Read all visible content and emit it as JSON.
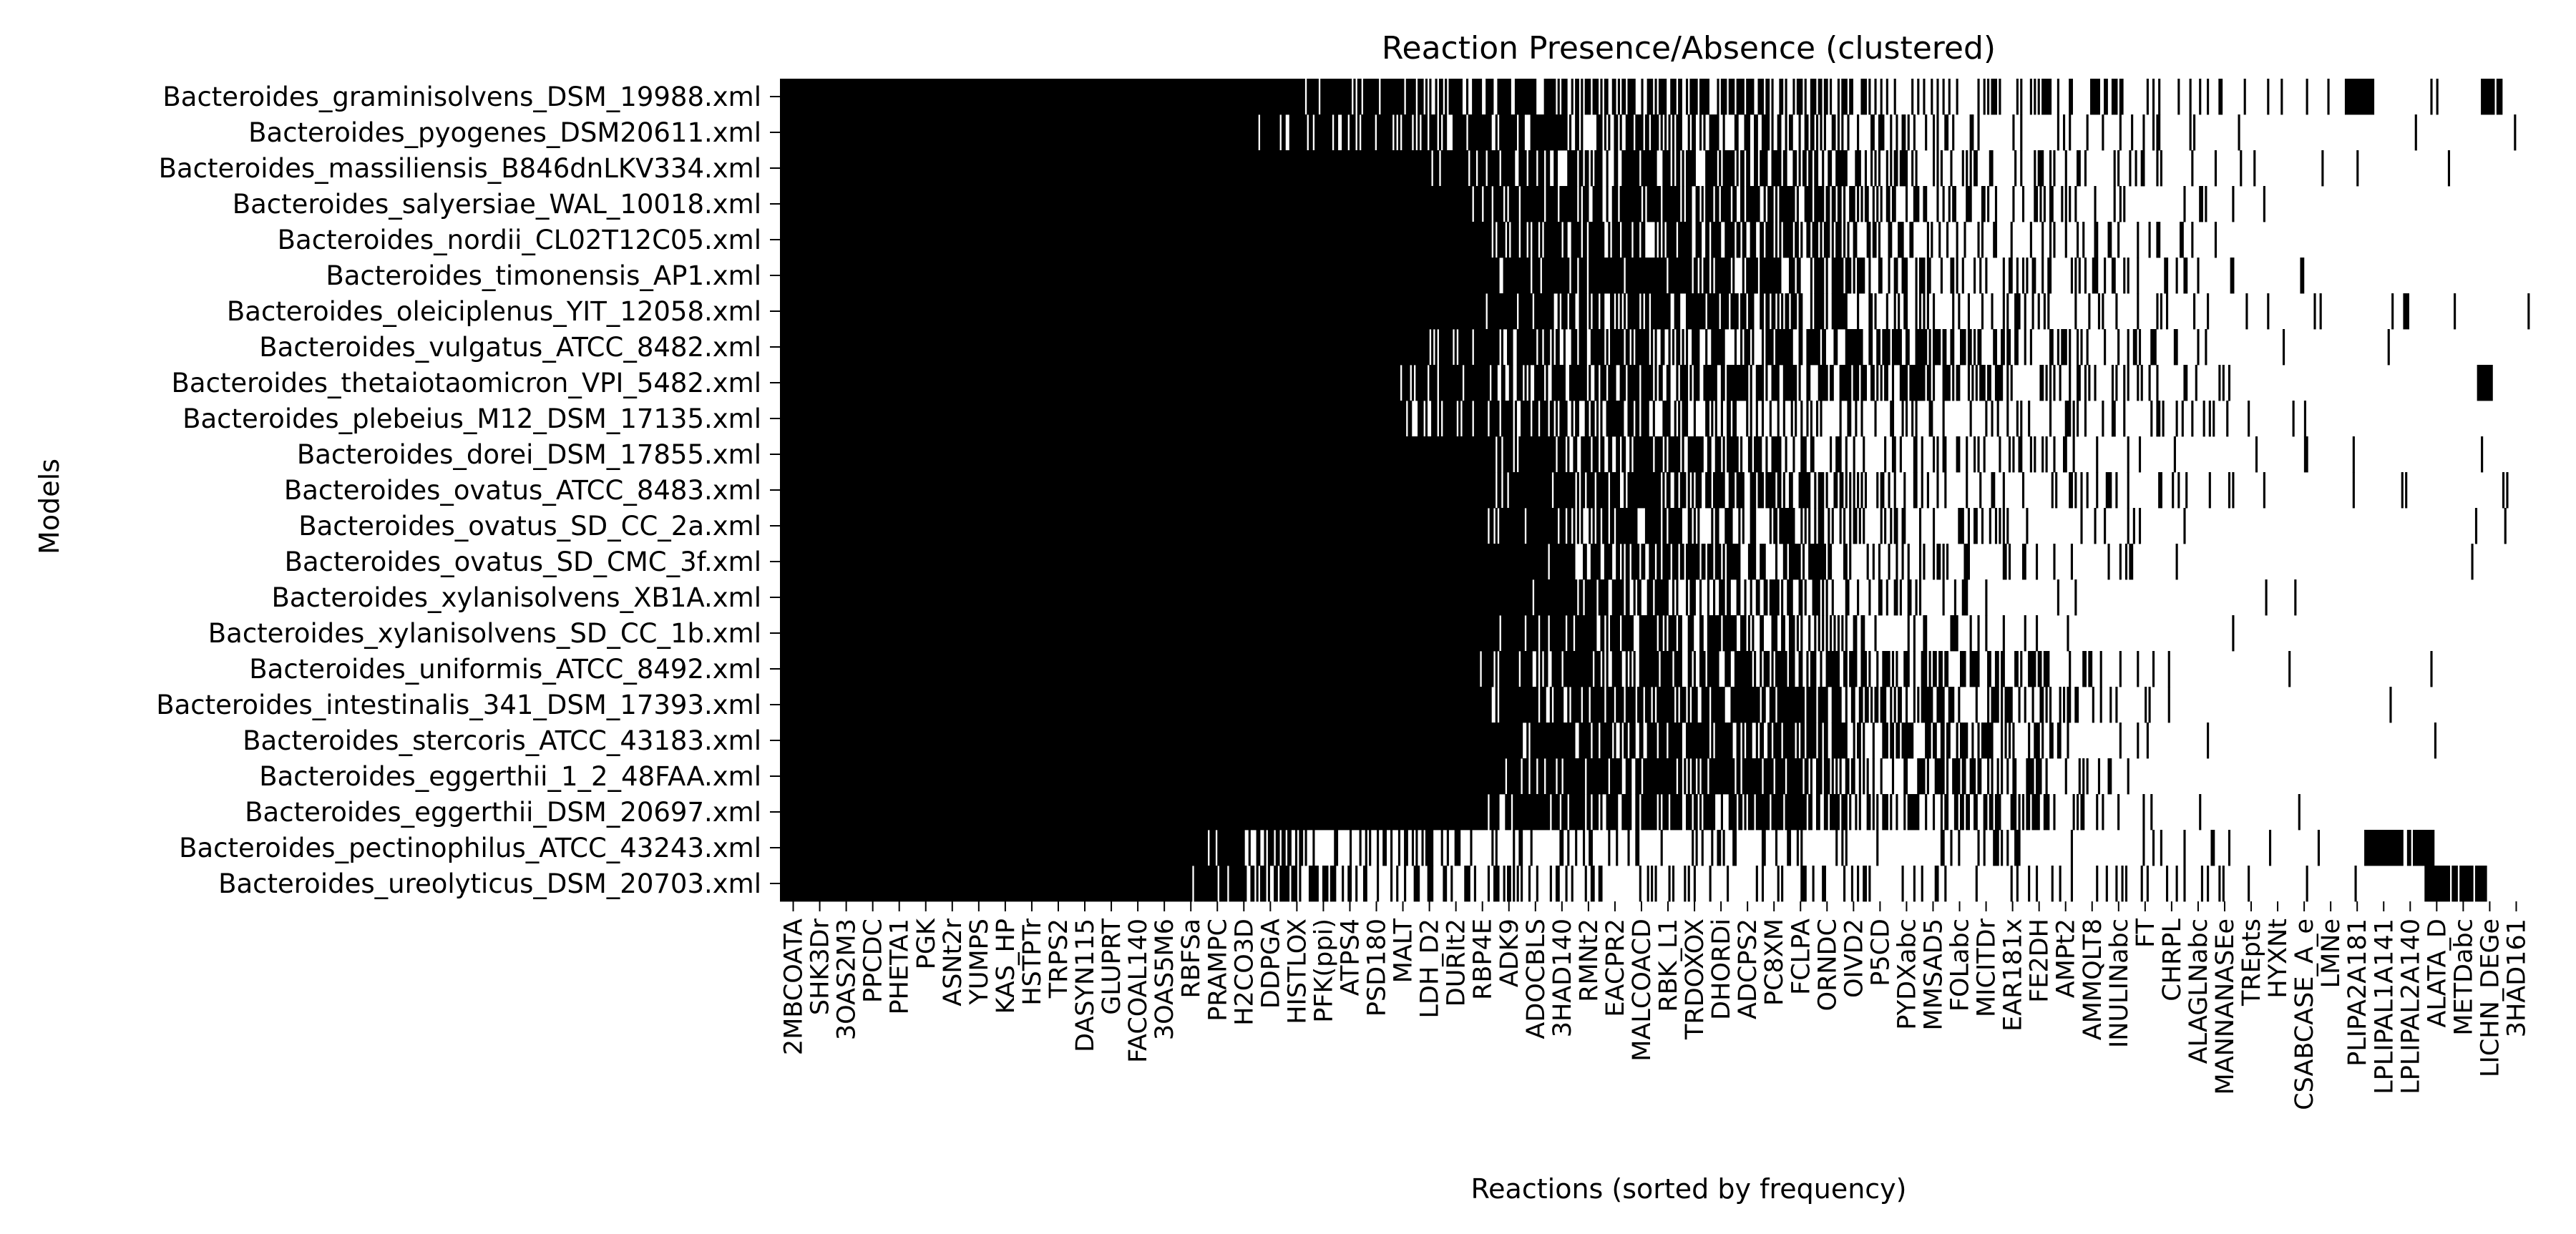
{
  "chart_data": {
    "type": "heatmap",
    "title": "Reaction Presence/Absence (clustered)",
    "xlabel": "Reactions (sorted by frequency)",
    "ylabel": "Models",
    "colors": {
      "present": "#000000",
      "absent": "#ffffff"
    },
    "rows": [
      "Bacteroides_graminisolvens_DSM_19988.xml",
      "Bacteroides_pyogenes_DSM20611.xml",
      "Bacteroides_massiliensis_B846dnLKV334.xml",
      "Bacteroides_salyersiae_WAL_10018.xml",
      "Bacteroides_nordii_CL02T12C05.xml",
      "Bacteroides_timonensis_AP1.xml",
      "Bacteroides_oleiciplenus_YIT_12058.xml",
      "Bacteroides_vulgatus_ATCC_8482.xml",
      "Bacteroides_thetaiotaomicron_VPI_5482.xml",
      "Bacteroides_plebeius_M12_DSM_17135.xml",
      "Bacteroides_dorei_DSM_17855.xml",
      "Bacteroides_ovatus_ATCC_8483.xml",
      "Bacteroides_ovatus_SD_CC_2a.xml",
      "Bacteroides_ovatus_SD_CMC_3f.xml",
      "Bacteroides_xylanisolvens_XB1A.xml",
      "Bacteroides_xylanisolvens_SD_CC_1b.xml",
      "Bacteroides_uniformis_ATCC_8492.xml",
      "Bacteroides_intestinalis_341_DSM_17393.xml",
      "Bacteroides_stercoris_ATCC_43183.xml",
      "Bacteroides_eggerthii_1_2_48FAA.xml",
      "Bacteroides_eggerthii_DSM_20697.xml",
      "Bacteroides_pectinophilus_ATCC_43243.xml",
      "Bacteroides_ureolyticus_DSM_20703.xml"
    ],
    "column_tick_labels": [
      "2MBCOATA",
      "SHK3Dr",
      "3OAS2M3",
      "PPCDC",
      "PHETA1",
      "PGK",
      "ASNt2r",
      "YUMPS",
      "KAS_HP",
      "HSTPTr",
      "TRPS2",
      "DASYN115",
      "GLUPRT",
      "FACOAL140",
      "3OAS5M6",
      "RBFSa",
      "PRAMPC",
      "H2CO3D",
      "DDPGA",
      "HISTLOX",
      "PFK(ppi)",
      "ATPS4",
      "PSD180",
      "MALT",
      "LDH_D2",
      "DURIt2",
      "RBP4E",
      "ADK9",
      "ADOCBLS",
      "3HAD140",
      "RMNt2",
      "EACPR2",
      "MALCOACD",
      "RBK_L1",
      "TRDOXOX",
      "DHORDi",
      "ADCPS2",
      "PC8XM",
      "FCLPA",
      "ORNDC",
      "OIVD2",
      "P5CD",
      "PYDXabc",
      "MMSAD5",
      "FOLabc",
      "MICITDr",
      "EAR181x",
      "FE2DH",
      "AMPt2",
      "AMMQLT8",
      "INULINabc",
      "FT",
      "CHRPL",
      "ALAGLNabc",
      "MANNANASEe",
      "TREpts",
      "HYXNt",
      "CSABCASE_A_e",
      "LMNe",
      "PLIPA2A181",
      "LPLIPAL1A141",
      "LPLIPAL2A140",
      "ALATA_D",
      "METDabc",
      "LICHN_DEGe",
      "3HAD161"
    ],
    "profiles": [
      {
        "row": 0,
        "solid_until": 0.3,
        "dense_until": 0.62,
        "sparse_until": 0.98,
        "spot_regions": [
          [
            0.895,
            0.91
          ],
          [
            0.972,
            0.985
          ]
        ]
      },
      {
        "row": 1,
        "solid_until": 0.27,
        "dense_until": 0.6,
        "sparse_until": 0.82,
        "spot_regions": []
      },
      {
        "row": 2,
        "solid_until": 0.36,
        "dense_until": 0.65,
        "sparse_until": 0.86,
        "spot_regions": []
      },
      {
        "row": 3,
        "solid_until": 0.39,
        "dense_until": 0.67,
        "sparse_until": 0.88,
        "spot_regions": []
      },
      {
        "row": 4,
        "solid_until": 0.39,
        "dense_until": 0.66,
        "sparse_until": 0.85,
        "spot_regions": []
      },
      {
        "row": 5,
        "solid_until": 0.4,
        "dense_until": 0.67,
        "sparse_until": 0.9,
        "spot_regions": []
      },
      {
        "row": 6,
        "solid_until": 0.4,
        "dense_until": 0.64,
        "sparse_until": 0.97,
        "spot_regions": []
      },
      {
        "row": 7,
        "solid_until": 0.34,
        "dense_until": 0.7,
        "sparse_until": 0.88,
        "spot_regions": []
      },
      {
        "row": 8,
        "solid_until": 0.34,
        "dense_until": 0.7,
        "sparse_until": 0.87,
        "spot_regions": [
          [
            0.97,
            0.978
          ]
        ]
      },
      {
        "row": 9,
        "solid_until": 0.34,
        "dense_until": 0.58,
        "sparse_until": 0.88,
        "spot_regions": []
      },
      {
        "row": 10,
        "solid_until": 0.4,
        "dense_until": 0.6,
        "sparse_until": 0.88,
        "spot_regions": []
      },
      {
        "row": 11,
        "solid_until": 0.4,
        "dense_until": 0.62,
        "sparse_until": 0.87,
        "spot_regions": []
      },
      {
        "row": 12,
        "solid_until": 0.4,
        "dense_until": 0.6,
        "sparse_until": 0.8,
        "spot_regions": []
      },
      {
        "row": 13,
        "solid_until": 0.41,
        "dense_until": 0.6,
        "sparse_until": 0.8,
        "spot_regions": []
      },
      {
        "row": 14,
        "solid_until": 0.41,
        "dense_until": 0.6,
        "sparse_until": 0.77,
        "spot_regions": []
      },
      {
        "row": 15,
        "solid_until": 0.41,
        "dense_until": 0.6,
        "sparse_until": 0.74,
        "spot_regions": []
      },
      {
        "row": 16,
        "solid_until": 0.4,
        "dense_until": 0.72,
        "sparse_until": 0.79,
        "spot_regions": []
      },
      {
        "row": 17,
        "solid_until": 0.4,
        "dense_until": 0.72,
        "sparse_until": 0.8,
        "spot_regions": []
      },
      {
        "row": 18,
        "solid_until": 0.4,
        "dense_until": 0.72,
        "sparse_until": 0.79,
        "spot_regions": []
      },
      {
        "row": 19,
        "solid_until": 0.4,
        "dense_until": 0.72,
        "sparse_until": 0.79,
        "spot_regions": []
      },
      {
        "row": 20,
        "solid_until": 0.4,
        "dense_until": 0.72,
        "sparse_until": 0.79,
        "spot_regions": []
      },
      {
        "row": 21,
        "solid_until": 0.23,
        "dense_until": 0.3,
        "sparse_until": 0.88,
        "spot_regions": [
          [
            0.905,
            0.945
          ]
        ]
      },
      {
        "row": 22,
        "solid_until": 0.23,
        "dense_until": 0.32,
        "sparse_until": 0.85,
        "spot_regions": [
          [
            0.94,
            0.975
          ]
        ]
      }
    ]
  }
}
